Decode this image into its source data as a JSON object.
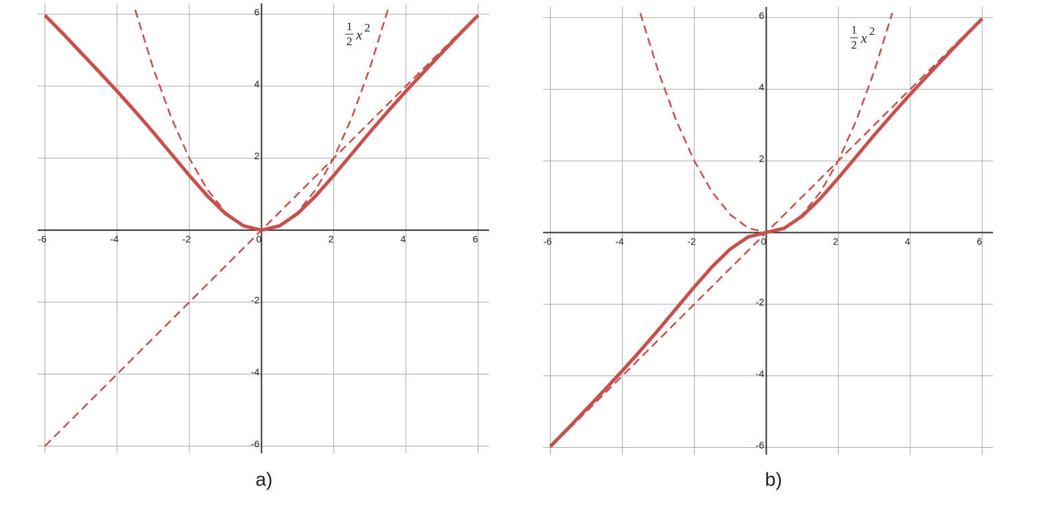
{
  "chart_data": [
    {
      "type": "line",
      "label": "a)",
      "annotation": {
        "numerator": "1",
        "denominator": "2",
        "variable": "x",
        "exponent": "2"
      },
      "x": [
        -6,
        -5.5,
        -5,
        -4.5,
        -4,
        -3.5,
        -3,
        -2.5,
        -2,
        -1.5,
        -1,
        -0.5,
        0,
        0.5,
        1,
        1.5,
        2,
        2.5,
        3,
        3.5,
        4,
        4.5,
        5,
        5.5,
        6
      ],
      "xlim": [
        -6.2,
        6.3
      ],
      "ylim": [
        -6.2,
        6.3
      ],
      "xticks": [
        -6,
        -4,
        -2,
        0,
        2,
        4,
        6
      ],
      "yticks": [
        -6,
        -4,
        -2,
        2,
        4,
        6
      ],
      "grid": true,
      "series": [
        {
          "color": "#c8504c",
          "dashed": false,
          "values": [
            5.97,
            5.46,
            4.93,
            4.4,
            3.86,
            3.3,
            2.72,
            2.12,
            1.52,
            0.95,
            0.46,
            0.12,
            0,
            0.12,
            0.46,
            0.95,
            1.52,
            2.12,
            2.72,
            3.3,
            3.86,
            4.4,
            4.93,
            5.46,
            5.97
          ]
        },
        {
          "color": "#c8504c",
          "dashed": true,
          "values": [
            -6,
            -5.5,
            -5,
            -4.5,
            -4,
            -3.5,
            -3,
            -2.5,
            -2,
            -1.5,
            -1,
            -0.5,
            0,
            0.5,
            1,
            1.5,
            2,
            2.5,
            3,
            3.5,
            4,
            4.5,
            5,
            5.5,
            6
          ]
        },
        {
          "color": "#c8504c",
          "dashed": true,
          "values": [
            null,
            null,
            null,
            null,
            null,
            6.125,
            4.5,
            3.125,
            2,
            1.125,
            0.5,
            0.125,
            0,
            0.125,
            0.5,
            1.125,
            2,
            3.125,
            4.5,
            6.125,
            null,
            null,
            null,
            null,
            null
          ]
        }
      ]
    },
    {
      "type": "line",
      "label": "b)",
      "annotation": {
        "numerator": "1",
        "denominator": "2",
        "variable": "x",
        "exponent": "2"
      },
      "x": [
        -6,
        -5.5,
        -5,
        -4.5,
        -4,
        -3.5,
        -3,
        -2.5,
        -2,
        -1.5,
        -1,
        -0.5,
        0,
        0.5,
        1,
        1.5,
        2,
        2.5,
        3,
        3.5,
        4,
        4.5,
        5,
        5.5,
        6
      ],
      "xlim": [
        -6.2,
        6.3
      ],
      "ylim": [
        -6.2,
        6.3
      ],
      "xticks": [
        -6,
        -4,
        -2,
        0,
        2,
        4,
        6
      ],
      "yticks": [
        -6,
        -4,
        -2,
        2,
        4,
        6
      ],
      "grid": true,
      "series": [
        {
          "color": "#c8504c",
          "dashed": false,
          "values": [
            -5.97,
            -5.46,
            -4.93,
            -4.4,
            -3.86,
            -3.3,
            -2.72,
            -2.12,
            -1.52,
            -0.95,
            -0.46,
            -0.12,
            0,
            0.12,
            0.46,
            0.95,
            1.52,
            2.12,
            2.72,
            3.3,
            3.86,
            4.4,
            4.93,
            5.46,
            5.97
          ]
        },
        {
          "color": "#c8504c",
          "dashed": true,
          "values": [
            -6,
            -5.5,
            -5,
            -4.5,
            -4,
            -3.5,
            -3,
            -2.5,
            -2,
            -1.5,
            -1,
            -0.5,
            0,
            0.5,
            1,
            1.5,
            2,
            2.5,
            3,
            3.5,
            4,
            4.5,
            5,
            5.5,
            6
          ]
        },
        {
          "color": "#c8504c",
          "dashed": true,
          "values": [
            null,
            null,
            null,
            null,
            null,
            6.125,
            4.5,
            3.125,
            2,
            1.125,
            0.5,
            0.125,
            0,
            0.125,
            0.5,
            1.125,
            2,
            3.125,
            4.5,
            6.125,
            null,
            null,
            null,
            null,
            null
          ]
        }
      ]
    }
  ]
}
